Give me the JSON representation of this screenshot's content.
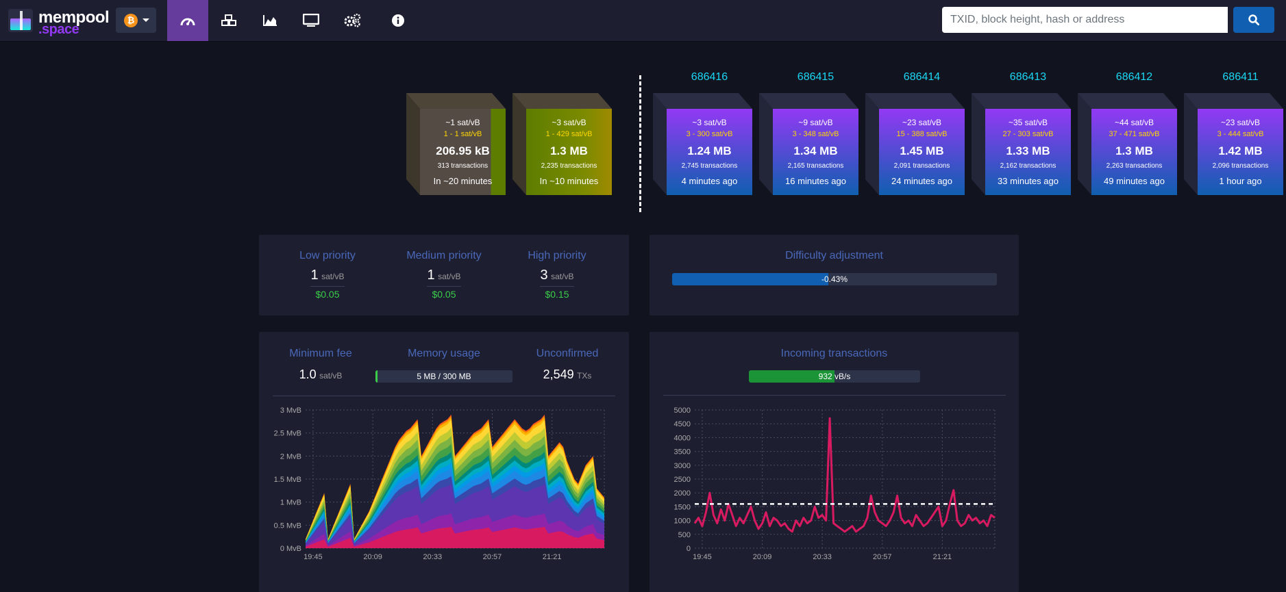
{
  "navbar": {
    "logo_text_1": "mempool",
    "logo_text_2": ".space",
    "network_icon": "bitcoin-icon",
    "nav_icons": [
      "dashboard-icon",
      "cubes-icon",
      "chart-area-icon",
      "tv-icon",
      "cogs-icon",
      "info-icon"
    ],
    "search_placeholder": "TXID, block height, hash or address"
  },
  "pending_blocks": [
    {
      "fee": "~1 sat/vB",
      "range": "1 - 1 sat/vB",
      "size": "206.95 kB",
      "txs": "313 transactions",
      "time": "In ~20 minutes"
    },
    {
      "fee": "~3 sat/vB",
      "range": "1 - 429 sat/vB",
      "size": "1.3 MB",
      "txs": "2,235 transactions",
      "time": "In ~10 minutes"
    }
  ],
  "blocks": [
    {
      "height": "686416",
      "fee": "~3 sat/vB",
      "range": "3 - 300 sat/vB",
      "size": "1.24 MB",
      "txs": "2,745 transactions",
      "time": "4 minutes ago"
    },
    {
      "height": "686415",
      "fee": "~9 sat/vB",
      "range": "3 - 348 sat/vB",
      "size": "1.34 MB",
      "txs": "2,165 transactions",
      "time": "16 minutes ago"
    },
    {
      "height": "686414",
      "fee": "~23 sat/vB",
      "range": "15 - 388 sat/vB",
      "size": "1.45 MB",
      "txs": "2,091 transactions",
      "time": "24 minutes ago"
    },
    {
      "height": "686413",
      "fee": "~35 sat/vB",
      "range": "27 - 303 sat/vB",
      "size": "1.33 MB",
      "txs": "2,162 transactions",
      "time": "33 minutes ago"
    },
    {
      "height": "686412",
      "fee": "~44 sat/vB",
      "range": "37 - 471 sat/vB",
      "size": "1.3 MB",
      "txs": "2,263 transactions",
      "time": "49 minutes ago"
    },
    {
      "height": "686411",
      "fee": "~23 sat/vB",
      "range": "3 - 444 sat/vB",
      "size": "1.42 MB",
      "txs": "2,096 transactions",
      "time": "1 hour ago"
    }
  ],
  "fees": {
    "low": {
      "label": "Low priority",
      "value": "1",
      "unit": "sat/vB",
      "usd": "$0.05"
    },
    "medium": {
      "label": "Medium priority",
      "value": "1",
      "unit": "sat/vB",
      "usd": "$0.05"
    },
    "high": {
      "label": "High priority",
      "value": "3",
      "unit": "sat/vB",
      "usd": "$0.15"
    }
  },
  "difficulty": {
    "label": "Difficulty adjustment",
    "value": "-0.43%",
    "progress": 0.48
  },
  "mempool_stats": {
    "min_fee": {
      "label": "Minimum fee",
      "value": "1.0",
      "unit": "sat/vB"
    },
    "memory": {
      "label": "Memory usage",
      "value": "5 MB / 300 MB",
      "fraction": 0.017
    },
    "unconfirmed": {
      "label": "Unconfirmed",
      "value": "2,549",
      "unit": "TXs"
    }
  },
  "incoming": {
    "label": "Incoming transactions",
    "value": "932 vB/s",
    "fraction": 0.5
  },
  "colors": {
    "accent": "#653b9c",
    "block_top": "#9339f4",
    "block_bottom": "#105fb0",
    "link": "#1bd8f4",
    "fee_title": "#4a68b9",
    "usd": "#3bcc49",
    "tx_line": "#d81b60"
  },
  "chart_data": [
    {
      "type": "area",
      "y_tick_labels": [
        "0 MvB",
        "0.5 MvB",
        "1 MvB",
        "1.5 MvB",
        "2 MvB",
        "2.5 MvB",
        "3 MvB"
      ],
      "x_tick_labels": [
        "19:45",
        "20:09",
        "20:33",
        "20:57",
        "21:21"
      ],
      "ylim": [
        0,
        3
      ],
      "x": [
        0,
        1,
        2,
        3,
        4,
        5,
        6,
        7,
        8,
        9,
        10,
        11,
        12,
        13,
        14,
        15,
        16,
        17,
        18,
        19,
        20,
        21,
        22,
        23,
        24,
        25,
        26,
        27,
        28,
        29,
        30,
        31,
        32,
        33,
        34,
        35,
        36,
        37,
        38,
        39,
        40,
        41,
        42,
        43,
        44,
        45,
        46,
        47,
        48,
        49,
        50,
        51,
        52,
        53,
        54,
        55,
        56,
        57,
        58,
        59,
        60,
        61,
        62,
        63,
        64,
        65,
        66,
        67,
        68,
        69,
        70,
        71,
        72,
        73,
        74,
        75,
        76,
        77,
        78,
        79,
        80
      ],
      "total": [
        0.2,
        0.4,
        0.6,
        0.8,
        1.0,
        1.2,
        0.2,
        0.4,
        0.6,
        0.8,
        1.0,
        1.2,
        1.4,
        0.2,
        0.35,
        0.5,
        0.65,
        0.8,
        1.0,
        1.2,
        1.4,
        1.6,
        1.8,
        2.0,
        2.2,
        2.35,
        2.45,
        2.55,
        2.6,
        2.7,
        2.8,
        2.0,
        2.15,
        2.3,
        2.45,
        2.6,
        2.7,
        2.75,
        2.8,
        2.9,
        2.0,
        2.1,
        2.2,
        2.3,
        2.4,
        2.5,
        2.55,
        2.6,
        2.7,
        2.8,
        2.2,
        2.3,
        2.4,
        2.5,
        2.6,
        2.7,
        2.8,
        2.7,
        2.6,
        2.55,
        2.6,
        2.7,
        2.75,
        2.8,
        2.9,
        2.0,
        2.1,
        2.2,
        2.3,
        2.2,
        1.9,
        1.7,
        1.5,
        1.4,
        1.6,
        1.8,
        1.9,
        2.0,
        1.3,
        1.2,
        1.1
      ],
      "series_colors": [
        "#d81b60",
        "#8e24aa",
        "#5e35b1",
        "#3949ab",
        "#1e88e5",
        "#039be5",
        "#00acc1",
        "#00897b",
        "#43a047",
        "#7cb342",
        "#c0ca33",
        "#fdd835",
        "#ffb300",
        "#fb8c00",
        "#f4511e"
      ]
    },
    {
      "type": "line",
      "y_tick_labels": [
        "0",
        "500",
        "1000",
        "1500",
        "2000",
        "2500",
        "3000",
        "3500",
        "4000",
        "4500",
        "5000"
      ],
      "x_tick_labels": [
        "19:45",
        "20:09",
        "20:33",
        "20:57",
        "21:21"
      ],
      "ylim": [
        0,
        5000
      ],
      "x": [
        0,
        1,
        2,
        3,
        4,
        5,
        6,
        7,
        8,
        9,
        10,
        11,
        12,
        13,
        14,
        15,
        16,
        17,
        18,
        19,
        20,
        21,
        22,
        23,
        24,
        25,
        26,
        27,
        28,
        29,
        30,
        31,
        32,
        33,
        34,
        35,
        36,
        37,
        38,
        39,
        40,
        41,
        42,
        43,
        44,
        45,
        46,
        47,
        48,
        49,
        50,
        51,
        52,
        53,
        54,
        55,
        56,
        57,
        58,
        59,
        60,
        61,
        62,
        63,
        64,
        65,
        66,
        67,
        68,
        69,
        70,
        71,
        72,
        73,
        74,
        75,
        76,
        77,
        78,
        79,
        80
      ],
      "y": [
        900,
        1100,
        800,
        1300,
        2000,
        1200,
        900,
        1400,
        1000,
        1600,
        1200,
        800,
        1100,
        900,
        1200,
        1500,
        1000,
        700,
        900,
        1300,
        800,
        1100,
        1000,
        800,
        900,
        700,
        600,
        1000,
        800,
        1100,
        900,
        1000,
        1500,
        1100,
        1200,
        1000,
        4700,
        900,
        800,
        700,
        600,
        700,
        800,
        600,
        700,
        800,
        1100,
        1900,
        1300,
        1000,
        900,
        800,
        1000,
        1300,
        1900,
        1100,
        900,
        1000,
        800,
        1200,
        1000,
        800,
        900,
        1100,
        1300,
        1500,
        800,
        1000,
        1600,
        2100,
        1000,
        800,
        900,
        1200,
        1000,
        1100,
        900,
        1000,
        800,
        1200,
        1100
      ],
      "threshold": 1600
    }
  ]
}
